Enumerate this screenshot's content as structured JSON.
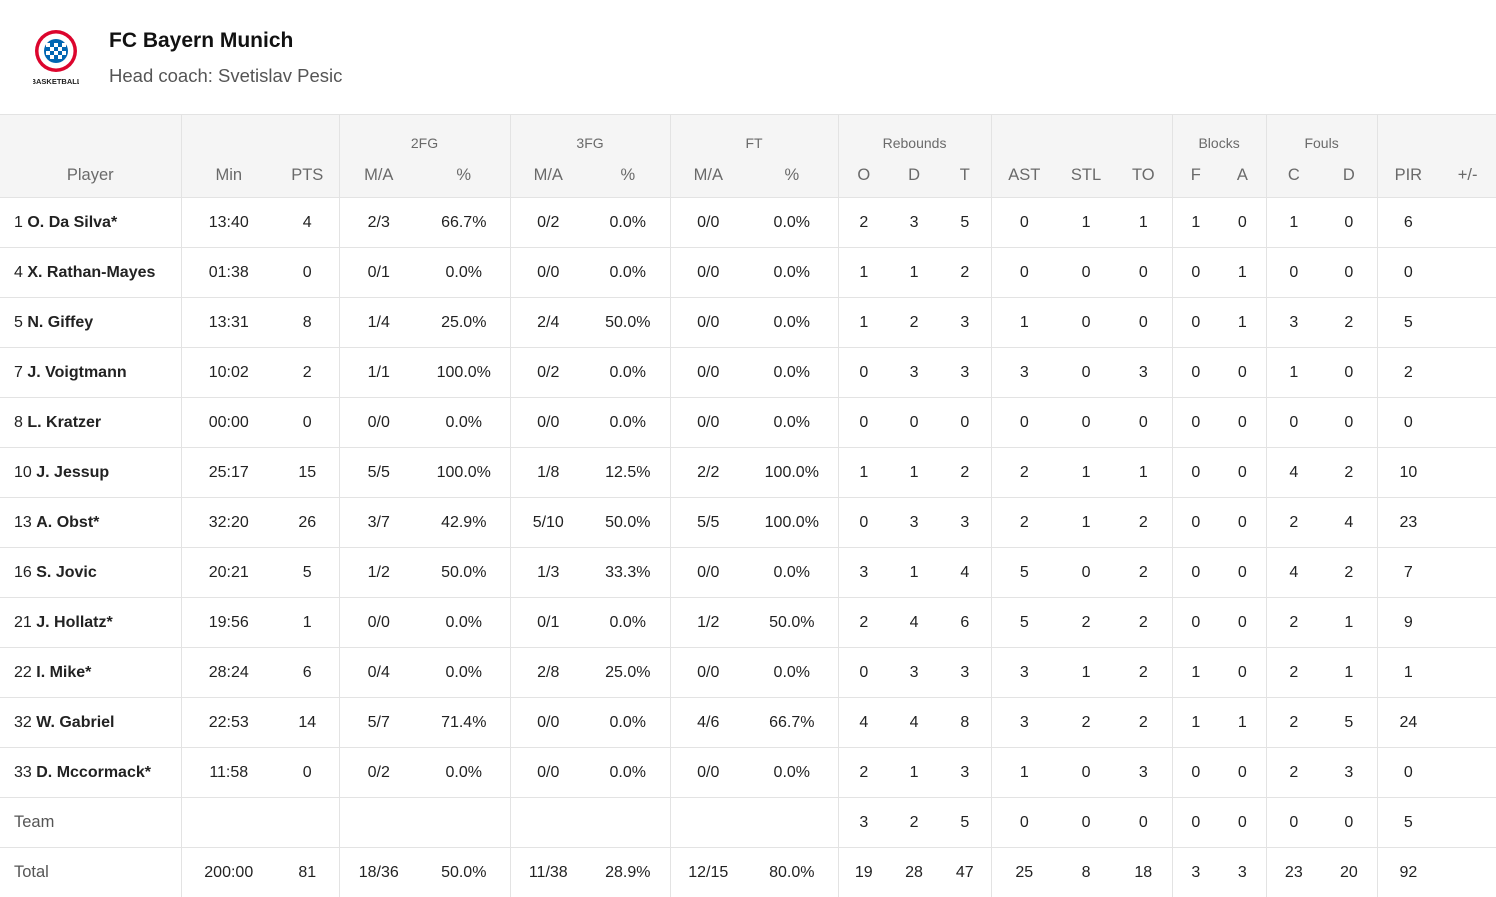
{
  "team": {
    "name": "FC Bayern Munich",
    "coach": "Head coach: Svetislav Pesic",
    "logo_text": "BASKETBALL"
  },
  "colors": {
    "brand_red": "#dc052d",
    "brand_blue": "#0066b2",
    "header_bg": "#f5f5f5",
    "grid": "#e3e3e3"
  },
  "table": {
    "groups": [
      "2FG",
      "3FG",
      "FT",
      "Rebounds",
      "Blocks",
      "Fouls"
    ],
    "columns": [
      "Player",
      "Min",
      "PTS",
      "M/A",
      "%",
      "M/A",
      "%",
      "M/A",
      "%",
      "O",
      "D",
      "T",
      "AST",
      "STL",
      "TO",
      "F",
      "A",
      "C",
      "D",
      "PIR",
      "+/-"
    ],
    "players": [
      {
        "num": "1",
        "name": "O. Da Silva*",
        "stats": [
          "13:40",
          "4",
          "2/3",
          "66.7%",
          "0/2",
          "0.0%",
          "0/0",
          "0.0%",
          "2",
          "3",
          "5",
          "0",
          "1",
          "1",
          "1",
          "0",
          "1",
          "0",
          "6",
          ""
        ]
      },
      {
        "num": "4",
        "name": "X. Rathan-Mayes",
        "stats": [
          "01:38",
          "0",
          "0/1",
          "0.0%",
          "0/0",
          "0.0%",
          "0/0",
          "0.0%",
          "1",
          "1",
          "2",
          "0",
          "0",
          "0",
          "0",
          "1",
          "0",
          "0",
          "0",
          ""
        ]
      },
      {
        "num": "5",
        "name": "N. Giffey",
        "stats": [
          "13:31",
          "8",
          "1/4",
          "25.0%",
          "2/4",
          "50.0%",
          "0/0",
          "0.0%",
          "1",
          "2",
          "3",
          "1",
          "0",
          "0",
          "0",
          "1",
          "3",
          "2",
          "5",
          ""
        ]
      },
      {
        "num": "7",
        "name": "J. Voigtmann",
        "stats": [
          "10:02",
          "2",
          "1/1",
          "100.0%",
          "0/2",
          "0.0%",
          "0/0",
          "0.0%",
          "0",
          "3",
          "3",
          "3",
          "0",
          "3",
          "0",
          "0",
          "1",
          "0",
          "2",
          ""
        ]
      },
      {
        "num": "8",
        "name": "L. Kratzer",
        "stats": [
          "00:00",
          "0",
          "0/0",
          "0.0%",
          "0/0",
          "0.0%",
          "0/0",
          "0.0%",
          "0",
          "0",
          "0",
          "0",
          "0",
          "0",
          "0",
          "0",
          "0",
          "0",
          "0",
          ""
        ]
      },
      {
        "num": "10",
        "name": "J. Jessup",
        "stats": [
          "25:17",
          "15",
          "5/5",
          "100.0%",
          "1/8",
          "12.5%",
          "2/2",
          "100.0%",
          "1",
          "1",
          "2",
          "2",
          "1",
          "1",
          "0",
          "0",
          "4",
          "2",
          "10",
          ""
        ]
      },
      {
        "num": "13",
        "name": "A. Obst*",
        "stats": [
          "32:20",
          "26",
          "3/7",
          "42.9%",
          "5/10",
          "50.0%",
          "5/5",
          "100.0%",
          "0",
          "3",
          "3",
          "2",
          "1",
          "2",
          "0",
          "0",
          "2",
          "4",
          "23",
          ""
        ]
      },
      {
        "num": "16",
        "name": "S. Jovic",
        "stats": [
          "20:21",
          "5",
          "1/2",
          "50.0%",
          "1/3",
          "33.3%",
          "0/0",
          "0.0%",
          "3",
          "1",
          "4",
          "5",
          "0",
          "2",
          "0",
          "0",
          "4",
          "2",
          "7",
          ""
        ]
      },
      {
        "num": "21",
        "name": "J. Hollatz*",
        "stats": [
          "19:56",
          "1",
          "0/0",
          "0.0%",
          "0/1",
          "0.0%",
          "1/2",
          "50.0%",
          "2",
          "4",
          "6",
          "5",
          "2",
          "2",
          "0",
          "0",
          "2",
          "1",
          "9",
          ""
        ]
      },
      {
        "num": "22",
        "name": "I. Mike*",
        "stats": [
          "28:24",
          "6",
          "0/4",
          "0.0%",
          "2/8",
          "25.0%",
          "0/0",
          "0.0%",
          "0",
          "3",
          "3",
          "3",
          "1",
          "2",
          "1",
          "0",
          "2",
          "1",
          "1",
          ""
        ]
      },
      {
        "num": "32",
        "name": "W. Gabriel",
        "stats": [
          "22:53",
          "14",
          "5/7",
          "71.4%",
          "0/0",
          "0.0%",
          "4/6",
          "66.7%",
          "4",
          "4",
          "8",
          "3",
          "2",
          "2",
          "1",
          "1",
          "2",
          "5",
          "24",
          ""
        ]
      },
      {
        "num": "33",
        "name": "D. Mccormack*",
        "stats": [
          "11:58",
          "0",
          "0/2",
          "0.0%",
          "0/0",
          "0.0%",
          "0/0",
          "0.0%",
          "2",
          "1",
          "3",
          "1",
          "0",
          "3",
          "0",
          "0",
          "2",
          "3",
          "0",
          ""
        ]
      }
    ],
    "team_row": {
      "label": "Team",
      "stats": [
        "",
        "",
        "",
        "",
        "",
        "",
        "",
        "",
        "3",
        "2",
        "5",
        "0",
        "0",
        "0",
        "0",
        "0",
        "0",
        "0",
        "5",
        ""
      ]
    },
    "total_row": {
      "label": "Total",
      "stats": [
        "200:00",
        "81",
        "18/36",
        "50.0%",
        "11/38",
        "28.9%",
        "12/15",
        "80.0%",
        "19",
        "28",
        "47",
        "25",
        "8",
        "18",
        "3",
        "3",
        "23",
        "20",
        "92",
        ""
      ]
    }
  }
}
